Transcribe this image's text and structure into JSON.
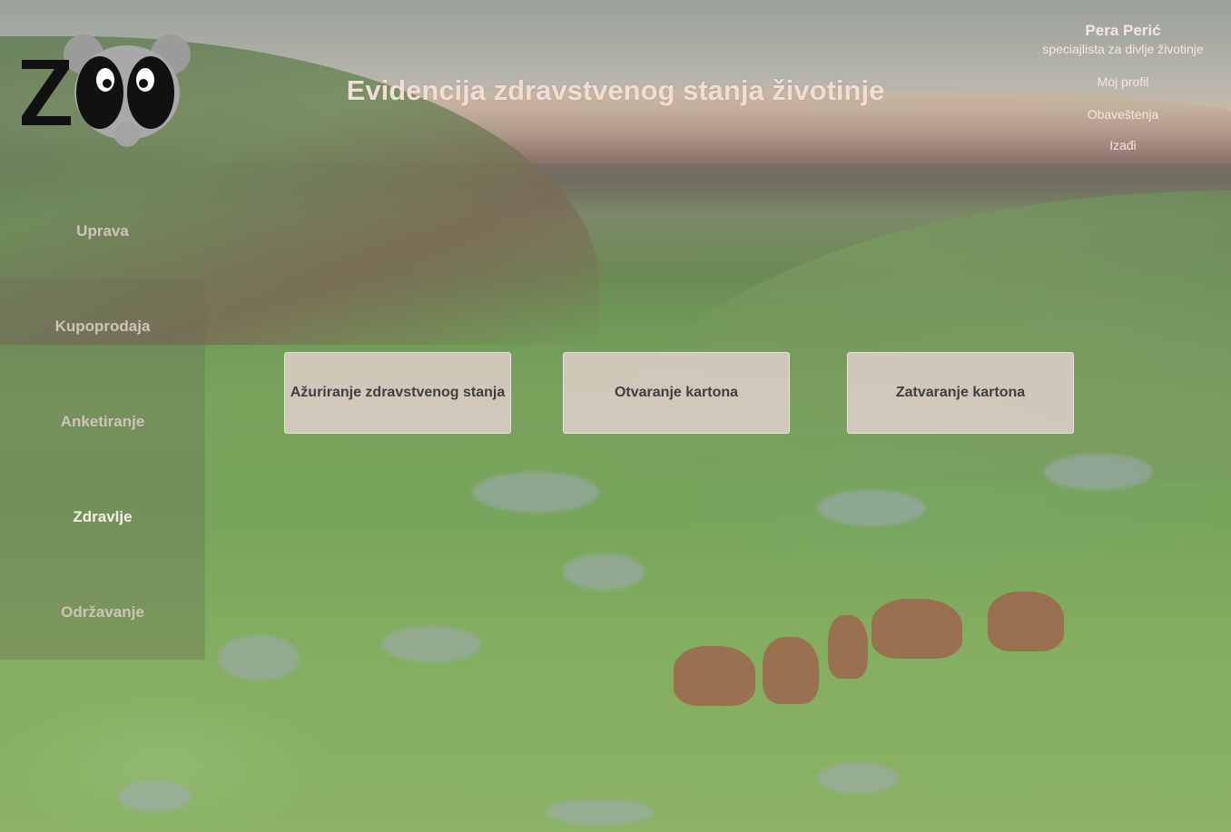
{
  "header": {
    "logo_text": "ZOO",
    "title": "Evidencija zdravstvenog stanja životinje"
  },
  "user": {
    "name": "Pera Perić",
    "role": "speciajlista za divlje životinje",
    "links": {
      "profile": "Moj profil",
      "notifications": "Obaveštenja",
      "logout": "Izađi"
    }
  },
  "sidebar": {
    "items": [
      {
        "label": "Uprava"
      },
      {
        "label": "Kupoprodaja"
      },
      {
        "label": "Anketiranje"
      },
      {
        "label": "Zdravlje"
      },
      {
        "label": "Održavanje"
      }
    ],
    "active": "Zdravlje"
  },
  "actions": {
    "update_health": "Ažuriranje zdravstvenog stanja",
    "open_record": "Otvaranje kartona",
    "close_record": "Zatvaranje kartona"
  },
  "icons": {
    "logo": "panda-zoo-logo-icon"
  }
}
